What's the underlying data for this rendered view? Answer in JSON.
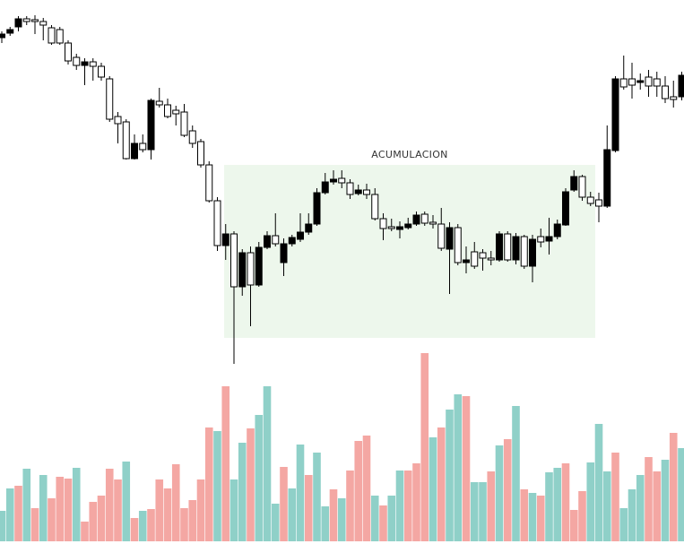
{
  "chart_data": {
    "type": "candlestick",
    "annotation": "ACUMULACION",
    "ylim": [
      40,
      450
    ],
    "up_color": "#000000",
    "down_color": "#ffffff",
    "edge_color": "#000000",
    "box_color": "#edf7ec",
    "open": [
      408,
      413,
      420,
      429,
      428,
      426,
      419,
      417,
      402,
      386,
      377,
      381,
      376,
      362,
      320,
      314,
      273,
      290,
      283,
      337,
      333,
      327,
      325,
      304,
      292,
      266,
      226,
      176,
      189,
      130,
      168,
      132,
      174,
      187,
      157,
      178,
      183,
      191,
      200,
      235,
      247,
      251,
      246,
      234,
      238,
      233,
      206,
      197,
      194,
      196,
      200,
      211,
      202,
      200,
      172,
      196,
      157,
      169,
      168,
      162,
      160,
      189,
      160,
      186,
      153,
      186,
      181,
      186,
      199,
      238,
      253,
      230,
      227,
      220,
      282,
      362,
      362,
      358,
      364,
      362,
      354,
      342,
      342
    ],
    "high": [
      415,
      420,
      432,
      432,
      433,
      430,
      422,
      420,
      405,
      390,
      385,
      385,
      380,
      365,
      325,
      317,
      300,
      300,
      340,
      352,
      340,
      332,
      334,
      310,
      295,
      270,
      230,
      200,
      192,
      172,
      175,
      180,
      192,
      212,
      184,
      188,
      212,
      212,
      240,
      257,
      260,
      260,
      250,
      244,
      245,
      240,
      212,
      206,
      203,
      207,
      214,
      214,
      210,
      218,
      202,
      200,
      175,
      180,
      172,
      170,
      192,
      192,
      190,
      188,
      188,
      195,
      207,
      205,
      240,
      260,
      255,
      236,
      235,
      310,
      365,
      388,
      380,
      368,
      372,
      370,
      365,
      360,
      370
    ],
    "low": [
      402,
      410,
      415,
      422,
      412,
      405,
      400,
      400,
      378,
      372,
      355,
      360,
      360,
      314,
      290,
      272,
      272,
      280,
      272,
      330,
      318,
      310,
      297,
      285,
      263,
      224,
      170,
      160,
      44,
      120,
      86,
      130,
      172,
      175,
      142,
      175,
      180,
      188,
      198,
      233,
      244,
      240,
      228,
      232,
      228,
      204,
      182,
      192,
      184,
      194,
      198,
      198,
      195,
      170,
      122,
      154,
      145,
      150,
      148,
      154,
      158,
      158,
      155,
      150,
      135,
      174,
      166,
      183,
      198,
      236,
      226,
      220,
      202,
      218,
      280,
      350,
      340,
      350,
      342,
      342,
      335,
      330,
      338
    ],
    "close": [
      412,
      417,
      429,
      426,
      426,
      422,
      402,
      402,
      382,
      377,
      381,
      376,
      364,
      317,
      312,
      273,
      290,
      283,
      338,
      333,
      320,
      323,
      299,
      290,
      266,
      226,
      176,
      189,
      130,
      168,
      132,
      174,
      187,
      178,
      178,
      185,
      191,
      200,
      235,
      247,
      250,
      246,
      233,
      238,
      233,
      206,
      195,
      195,
      197,
      200,
      210,
      201,
      200,
      173,
      196,
      157,
      160,
      153,
      162,
      160,
      189,
      160,
      186,
      153,
      183,
      180,
      186,
      200,
      236,
      253,
      230,
      223,
      220,
      283,
      362,
      353,
      355,
      360,
      354,
      354,
      340,
      339,
      366
    ],
    "volume": {
      "ylim": [
        0,
        210
      ],
      "values": [
        34,
        59,
        62,
        81,
        37,
        74,
        48,
        72,
        70,
        82,
        22,
        44,
        51,
        81,
        69,
        89,
        26,
        34,
        36,
        69,
        59,
        86,
        37,
        46,
        69,
        127,
        123,
        173,
        69,
        110,
        126,
        141,
        173,
        42,
        83,
        59,
        108,
        74,
        99,
        39,
        58,
        48,
        79,
        112,
        118,
        51,
        40,
        51,
        79,
        79,
        87,
        210,
        116,
        127,
        147,
        164,
        162,
        66,
        66,
        78,
        107,
        114,
        151,
        58,
        54,
        51,
        77,
        82,
        87,
        35,
        56,
        88,
        131,
        78,
        99,
        37,
        58,
        74,
        94,
        78,
        91,
        121,
        104
      ],
      "colors": [
        "#8fd0c8",
        "#8fd0c8",
        "#f4a7a3",
        "#8fd0c8",
        "#f4a7a3",
        "#8fd0c8",
        "#f4a7a3",
        "#f4a7a3",
        "#f4a7a3",
        "#8fd0c8",
        "#f4a7a3",
        "#f4a7a3",
        "#f4a7a3",
        "#f4a7a3",
        "#f4a7a3",
        "#8fd0c8",
        "#f4a7a3",
        "#8fd0c8",
        "#f4a7a3",
        "#f4a7a3",
        "#f4a7a3",
        "#f4a7a3",
        "#f4a7a3",
        "#f4a7a3",
        "#f4a7a3",
        "#f4a7a3",
        "#8fd0c8",
        "#f4a7a3",
        "#8fd0c8",
        "#8fd0c8",
        "#f4a7a3",
        "#8fd0c8",
        "#8fd0c8",
        "#8fd0c8",
        "#f4a7a3",
        "#8fd0c8",
        "#8fd0c8",
        "#f4a7a3",
        "#8fd0c8",
        "#8fd0c8",
        "#f4a7a3",
        "#8fd0c8",
        "#f4a7a3",
        "#f4a7a3",
        "#f4a7a3",
        "#8fd0c8",
        "#f4a7a3",
        "#8fd0c8",
        "#8fd0c8",
        "#f4a7a3",
        "#f4a7a3",
        "#f4a7a3",
        "#8fd0c8",
        "#f4a7a3",
        "#8fd0c8",
        "#8fd0c8",
        "#f4a7a3",
        "#8fd0c8",
        "#8fd0c8",
        "#f4a7a3",
        "#8fd0c8",
        "#f4a7a3",
        "#8fd0c8",
        "#f4a7a3",
        "#8fd0c8",
        "#f4a7a3",
        "#8fd0c8",
        "#8fd0c8",
        "#f4a7a3",
        "#f4a7a3",
        "#f4a7a3",
        "#8fd0c8",
        "#8fd0c8",
        "#8fd0c8",
        "#f4a7a3",
        "#8fd0c8",
        "#8fd0c8",
        "#8fd0c8",
        "#f4a7a3",
        "#f4a7a3",
        "#8fd0c8",
        "#f4a7a3",
        "#8fd0c8"
      ]
    }
  }
}
